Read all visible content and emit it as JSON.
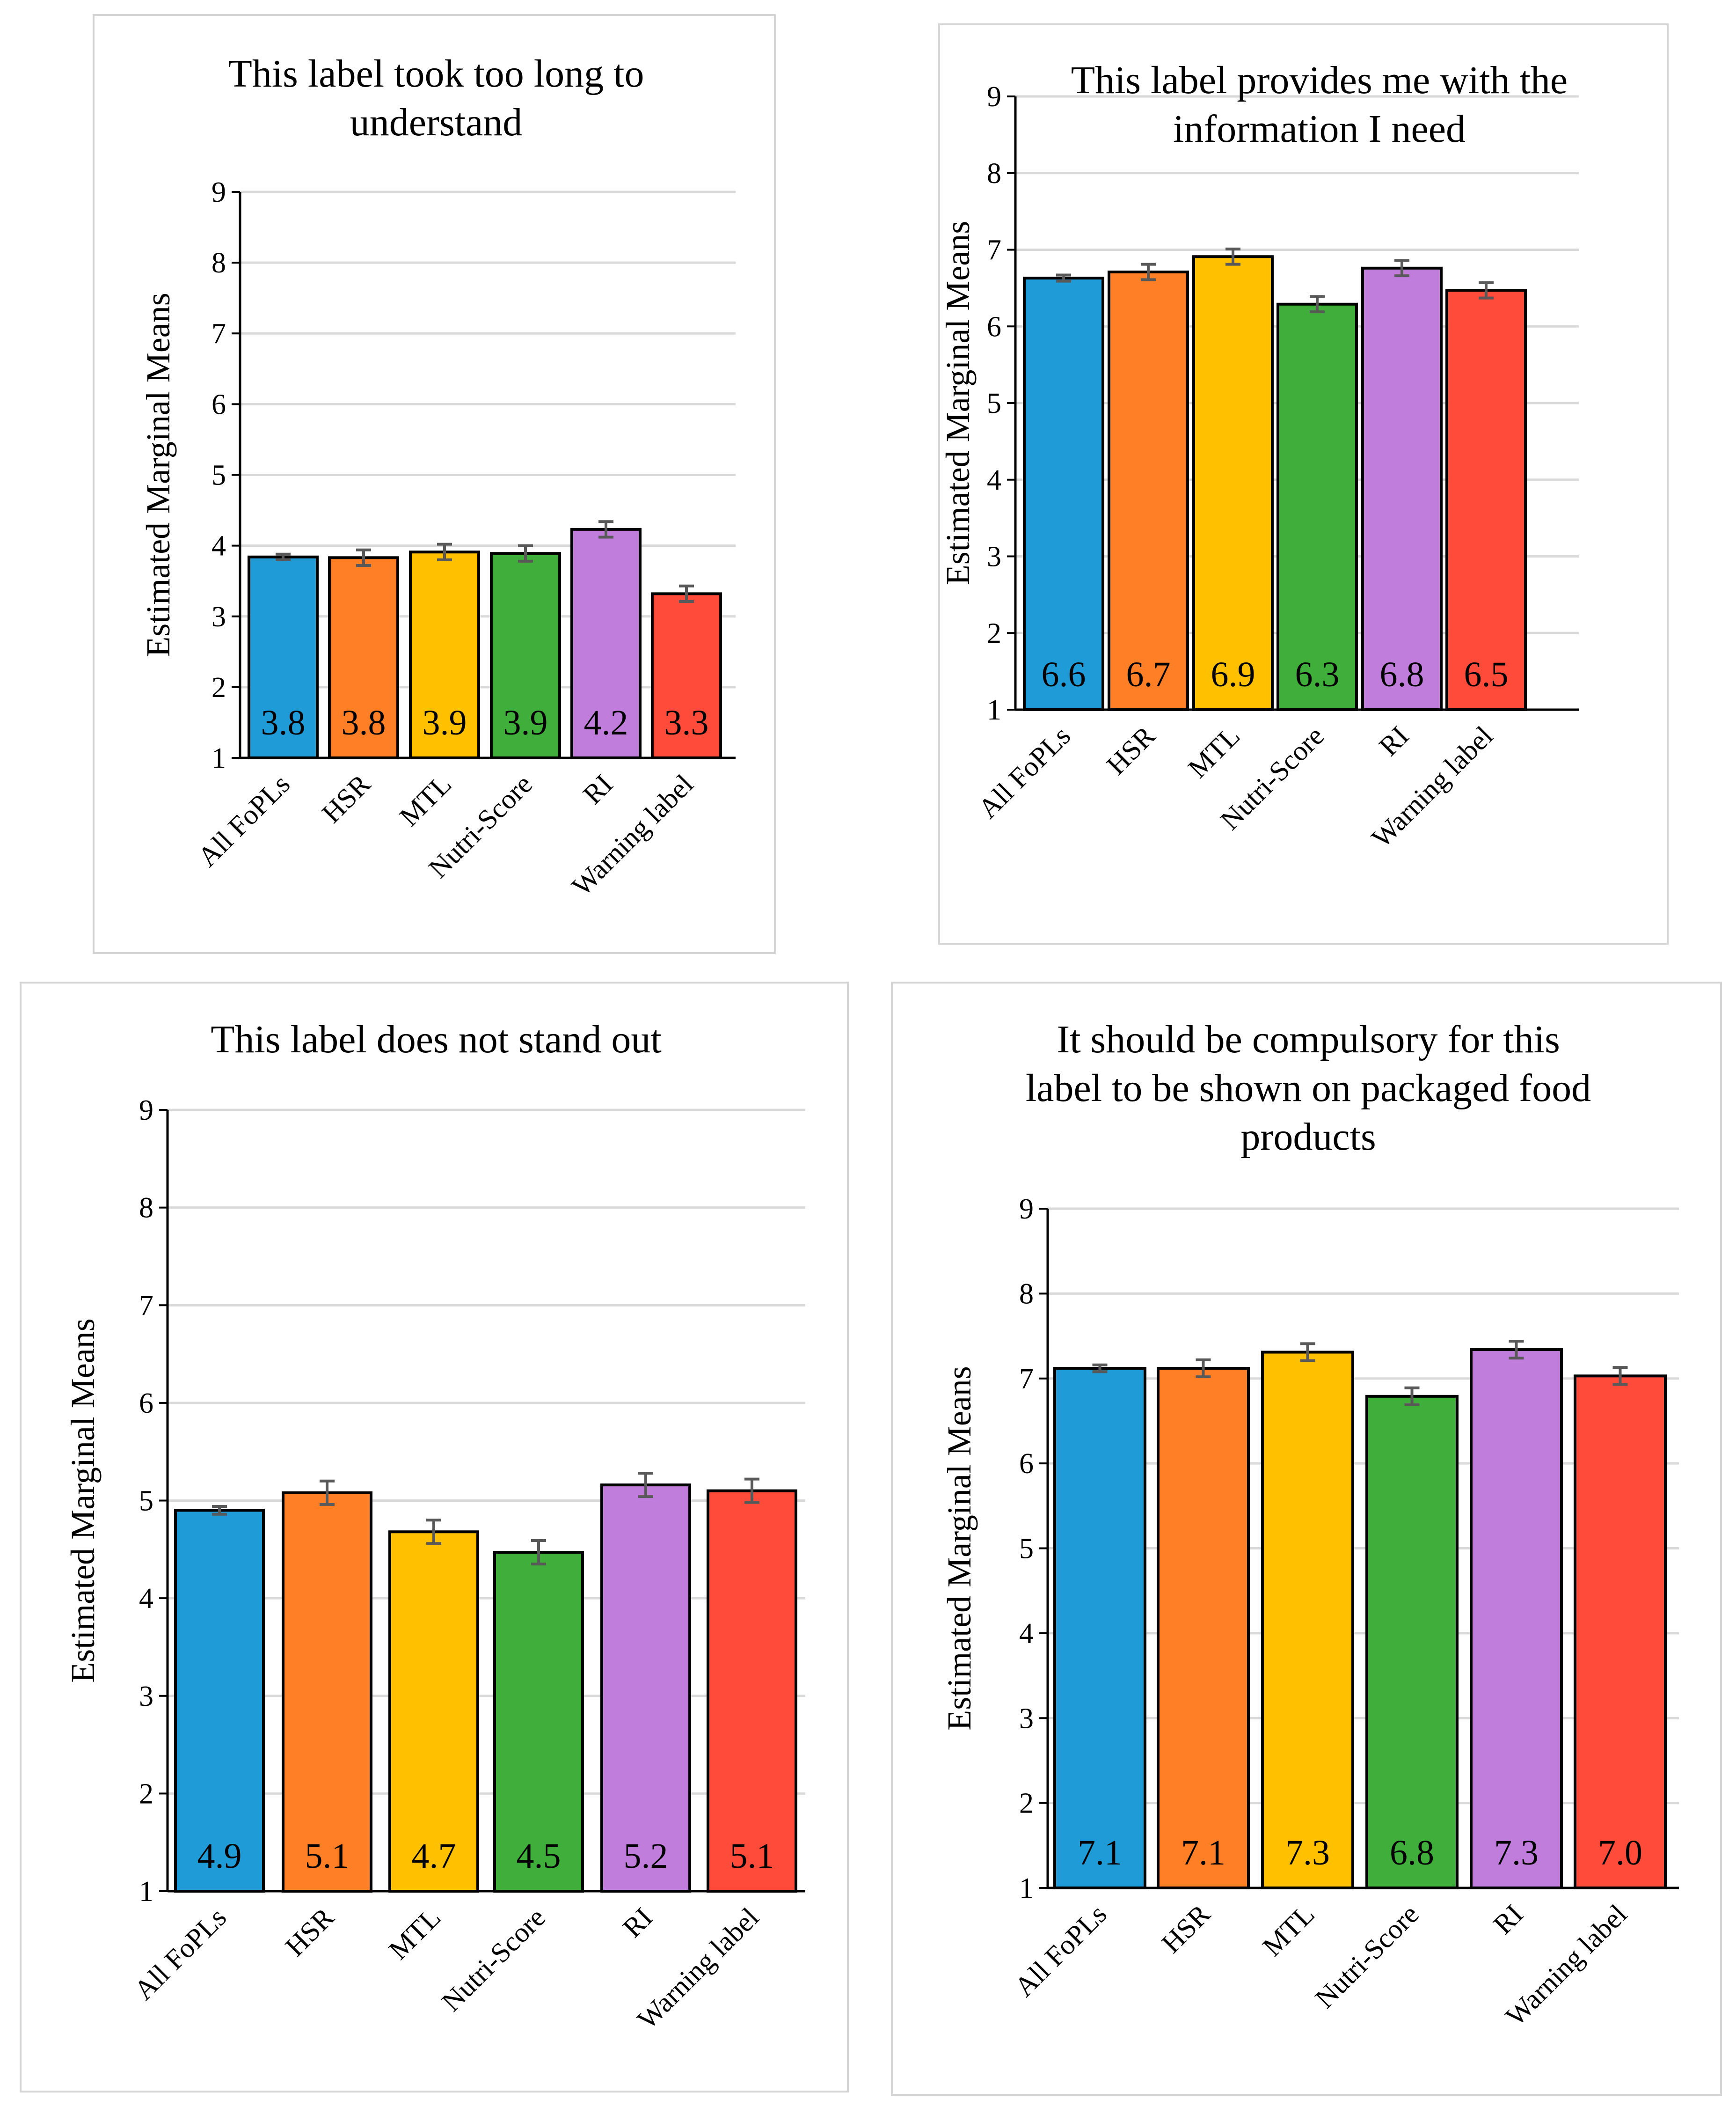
{
  "colors": {
    "bars": [
      "#1f9bd7",
      "#ff7f27",
      "#ffc000",
      "#3fae3b",
      "#c17ddb",
      "#ff4b3a"
    ],
    "grid": "#d9d9d9",
    "axis": "#000000",
    "error": "#595959"
  },
  "chart_data": [
    {
      "type": "bar",
      "title": "This label took too long to understand",
      "title_lines": [
        "This label took too long to",
        "understand"
      ],
      "ylabel": "Estimated Marginal Means",
      "xlabel": "",
      "ylim": [
        1,
        9
      ],
      "yticks": [
        1,
        2,
        3,
        4,
        5,
        6,
        7,
        8,
        9
      ],
      "categories": [
        "All FoPLs",
        "HSR",
        "MTL",
        "Nutri-Score",
        "RI",
        "Warning label"
      ],
      "values": [
        3.84,
        3.83,
        3.91,
        3.89,
        4.23,
        3.32
      ],
      "errors": [
        0.04,
        0.11,
        0.11,
        0.11,
        0.11,
        0.11
      ],
      "value_labels": [
        "3.8",
        "3.8",
        "3.9",
        "3.9",
        "4.2",
        "3.3"
      ],
      "grid": true
    },
    {
      "type": "bar",
      "title": "This label provides me with the information I need",
      "title_lines": [
        "This label provides me with the",
        "information I need"
      ],
      "ylabel": "Estimated Marginal Means",
      "xlabel": "",
      "ylim": [
        1,
        9
      ],
      "yticks": [
        1,
        2,
        3,
        4,
        5,
        6,
        7,
        8,
        9
      ],
      "categories": [
        "All FoPLs",
        "HSR",
        "MTL",
        "Nutri-Score",
        "RI",
        "Warning label"
      ],
      "values": [
        6.63,
        6.71,
        6.91,
        6.29,
        6.76,
        6.47
      ],
      "errors": [
        0.04,
        0.1,
        0.1,
        0.1,
        0.1,
        0.1
      ],
      "value_labels": [
        "6.6",
        "6.7",
        "6.9",
        "6.3",
        "6.8",
        "6.5"
      ],
      "grid": true
    },
    {
      "type": "bar",
      "title": "This label does not stand out",
      "title_lines": [
        "This label does not stand out"
      ],
      "ylabel": "Estimated Marginal Means",
      "xlabel": "",
      "ylim": [
        1,
        9
      ],
      "yticks": [
        1,
        2,
        3,
        4,
        5,
        6,
        7,
        8,
        9
      ],
      "categories": [
        "All FoPLs",
        "HSR",
        "MTL",
        "Nutri-Score",
        "RI",
        "Warning label"
      ],
      "values": [
        4.9,
        5.08,
        4.68,
        4.47,
        5.16,
        5.1
      ],
      "errors": [
        0.04,
        0.12,
        0.12,
        0.12,
        0.12,
        0.12
      ],
      "value_labels": [
        "4.9",
        "5.1",
        "4.7",
        "4.5",
        "5.2",
        "5.1"
      ],
      "grid": true
    },
    {
      "type": "bar",
      "title": "It should be compulsory for this label to be shown on packaged food products",
      "title_lines": [
        "It should be compulsory for this",
        "label to be shown on packaged food",
        "products"
      ],
      "ylabel": "Estimated Marginal Means",
      "xlabel": "",
      "ylim": [
        1,
        9
      ],
      "yticks": [
        1,
        2,
        3,
        4,
        5,
        6,
        7,
        8,
        9
      ],
      "categories": [
        "All FoPLs",
        "HSR",
        "MTL",
        "Nutri-Score",
        "RI",
        "Warning label"
      ],
      "values": [
        7.12,
        7.12,
        7.31,
        6.79,
        7.34,
        7.03
      ],
      "errors": [
        0.04,
        0.1,
        0.1,
        0.1,
        0.1,
        0.1
      ],
      "value_labels": [
        "7.1",
        "7.1",
        "7.3",
        "6.8",
        "7.3",
        "7.0"
      ],
      "grid": true
    }
  ]
}
